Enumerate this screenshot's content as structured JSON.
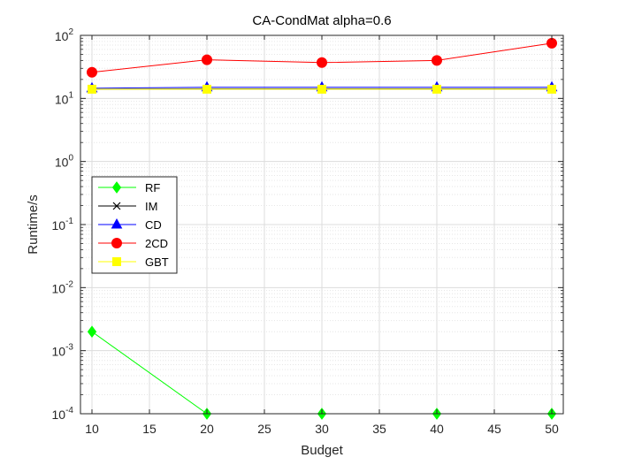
{
  "chart_data": {
    "type": "line",
    "title": "CA-CondMat alpha=0.6",
    "xlabel": "Budget",
    "ylabel": "Runtime/s",
    "x": [
      10,
      20,
      30,
      40,
      50
    ],
    "xlim": [
      9,
      51
    ],
    "xticks": [
      "10",
      "15",
      "20",
      "25",
      "30",
      "35",
      "40",
      "45",
      "50"
    ],
    "ylim": [
      0.0001,
      100
    ],
    "yscale": "log",
    "yticks": [
      {
        "base": "10",
        "exp": "-4"
      },
      {
        "base": "10",
        "exp": "-3"
      },
      {
        "base": "10",
        "exp": "-2"
      },
      {
        "base": "10",
        "exp": "-1"
      },
      {
        "base": "10",
        "exp": "0"
      },
      {
        "base": "10",
        "exp": "1"
      },
      {
        "base": "10",
        "exp": "2"
      }
    ],
    "grid": true,
    "legend_position": "left",
    "series": [
      {
        "name": "RF",
        "color": "#00ff00",
        "marker": "diamond",
        "values": [
          0.002,
          0.0001,
          0.0001,
          0.0001,
          0.0001
        ]
      },
      {
        "name": "IM",
        "color": "#000000",
        "marker": "x",
        "values": [
          14,
          14.2,
          14.2,
          14.2,
          14.2
        ]
      },
      {
        "name": "CD",
        "color": "#0000ff",
        "marker": "triangle",
        "values": [
          14.5,
          15,
          15,
          15,
          15
        ]
      },
      {
        "name": "2CD",
        "color": "#ff0000",
        "marker": "circle",
        "values": [
          26,
          41,
          37,
          40,
          75
        ]
      },
      {
        "name": "GBT",
        "color": "#ffff00",
        "marker": "square",
        "values": [
          14,
          14,
          14,
          14,
          14
        ]
      }
    ]
  }
}
